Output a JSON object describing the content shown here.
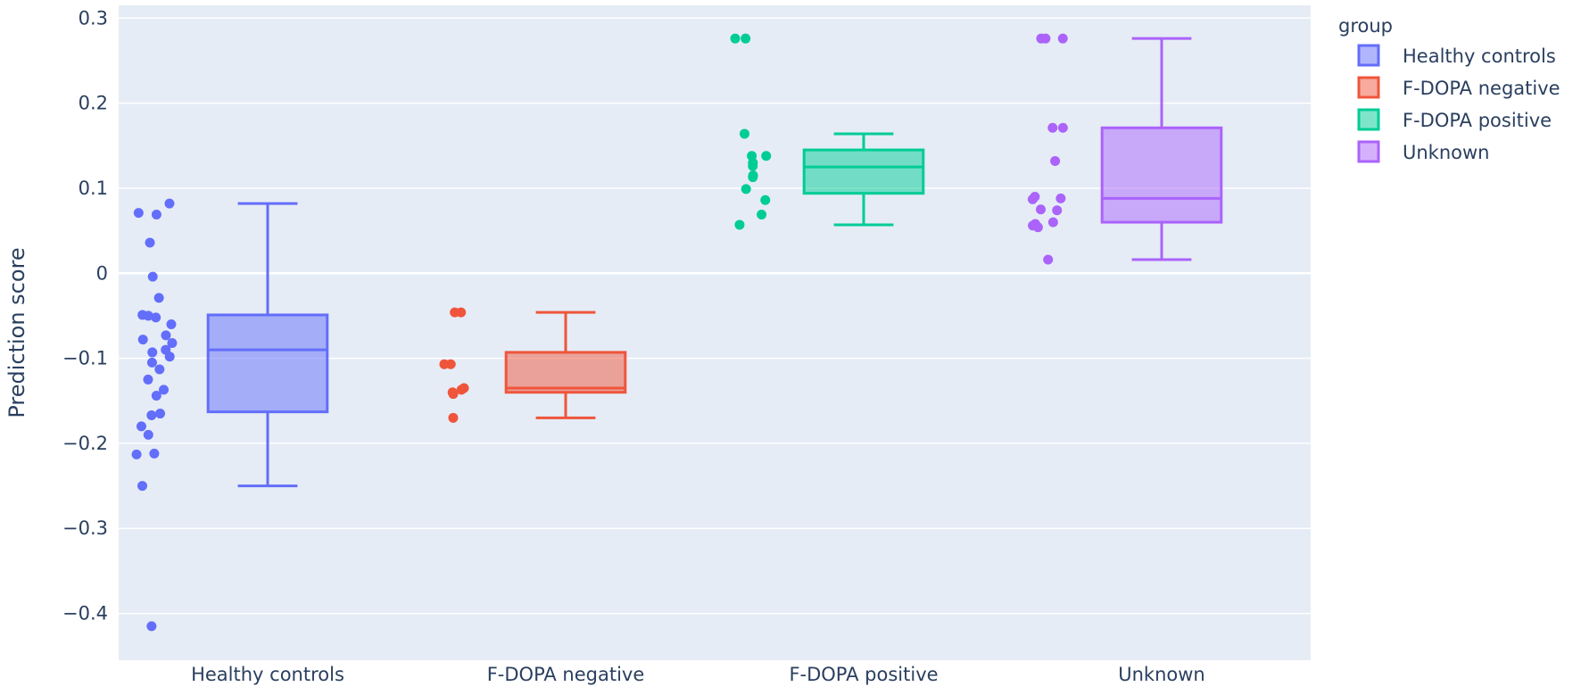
{
  "chart_data": {
    "type": "box",
    "title": "",
    "xlabel": "",
    "ylabel": "Prediction score",
    "ylim": [
      -0.455,
      0.315
    ],
    "yticks": [
      -0.4,
      -0.3,
      -0.2,
      -0.1,
      0,
      0.1,
      0.2,
      0.3
    ],
    "ytick_labels": [
      "−0.4",
      "−0.3",
      "−0.2",
      "−0.1",
      "0",
      "0.1",
      "0.2",
      "0.3"
    ],
    "grid": true,
    "legend": {
      "title": "group",
      "position": "top-right"
    },
    "categories": [
      "Healthy controls",
      "F-DOPA negative",
      "F-DOPA positive",
      "Unknown"
    ],
    "series": [
      {
        "name": "Healthy controls",
        "color": "#636efa",
        "box": {
          "min": -0.25,
          "q1": -0.163,
          "median": -0.09,
          "q3": -0.049,
          "max": 0.082
        },
        "points": [
          0.082,
          0.071,
          0.069,
          0.036,
          -0.004,
          -0.029,
          -0.049,
          -0.05,
          -0.052,
          -0.06,
          -0.073,
          -0.078,
          -0.082,
          -0.09,
          -0.093,
          -0.098,
          -0.105,
          -0.113,
          -0.125,
          -0.137,
          -0.144,
          -0.165,
          -0.167,
          -0.18,
          -0.19,
          -0.212,
          -0.213,
          -0.25,
          -0.415
        ]
      },
      {
        "name": "F-DOPA negative",
        "color": "#ef553b",
        "box": {
          "min": -0.17,
          "q1": -0.14,
          "median": -0.135,
          "q3": -0.093,
          "max": -0.046
        },
        "points": [
          -0.046,
          -0.046,
          -0.107,
          -0.107,
          -0.135,
          -0.137,
          -0.14,
          -0.142,
          -0.17
        ]
      },
      {
        "name": "F-DOPA positive",
        "color": "#00cc96",
        "box": {
          "min": 0.057,
          "q1": 0.094,
          "median": 0.125,
          "q3": 0.145,
          "max": 0.164
        },
        "points": [
          0.276,
          0.276,
          0.164,
          0.138,
          0.138,
          0.13,
          0.126,
          0.115,
          0.113,
          0.099,
          0.086,
          0.069,
          0.057
        ]
      },
      {
        "name": "Unknown",
        "color": "#ab63fa",
        "box": {
          "min": 0.016,
          "q1": 0.06,
          "median": 0.088,
          "q3": 0.171,
          "max": 0.276
        },
        "points": [
          0.276,
          0.276,
          0.276,
          0.171,
          0.171,
          0.132,
          0.09,
          0.088,
          0.087,
          0.075,
          0.074,
          0.06,
          0.058,
          0.056,
          0.054,
          0.016
        ]
      }
    ]
  }
}
